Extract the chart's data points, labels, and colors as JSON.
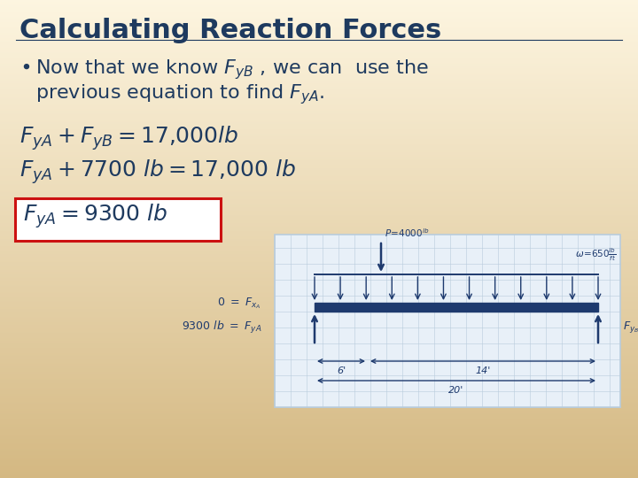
{
  "title": "Calculating Reaction Forces",
  "title_color": "#1e3a5f",
  "title_fontsize": 22,
  "bg_top": "#fdf5e0",
  "bg_bottom": "#d4b882",
  "text_color": "#1e3a5f",
  "eq_color": "#1e3a5f",
  "box_color": "#cc1111",
  "bullet_line1": "Now that we know $F_{yB}$ , we can  use the",
  "bullet_line2": "previous equation to find $F_{yA}$.",
  "eq1": "$F_{yA} + F_{yB} = 17{,}000lb$",
  "eq2": "$F_{yA} + 7700\\ lb = 17{,}000\\ lb$",
  "eq3": "$F_{yA} = 9300\\ lb$",
  "grid_color": "#b8ccdd",
  "grid_bg": "#e8f0f8",
  "beam_color": "#1e3a6e",
  "diagram_ink": "#1e3a6e"
}
